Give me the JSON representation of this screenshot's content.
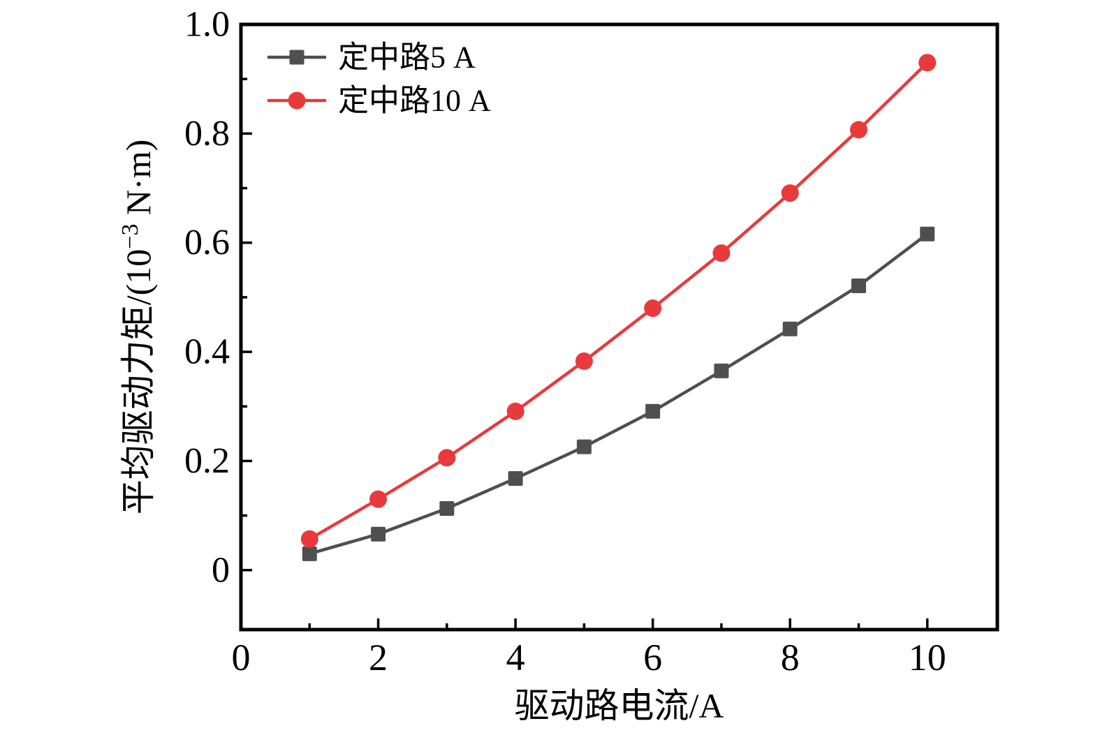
{
  "chart_data": {
    "type": "line",
    "title": "",
    "xlabel": "驱动路电流/A",
    "ylabel": "平均驱动力矩/(10⁻³ N·m)",
    "ylabel_parts": {
      "prefix": "平均驱动力矩/(10",
      "exponent": "−3",
      "suffix": " N·m)"
    },
    "x": [
      1,
      2,
      3,
      4,
      5,
      6,
      7,
      8,
      9,
      10
    ],
    "series": [
      {
        "name": "定中路5 A",
        "marker": "square",
        "color": "#4f4f4f",
        "values": [
          0.03,
          0.066,
          0.113,
          0.168,
          0.226,
          0.291,
          0.365,
          0.442,
          0.521,
          0.616
        ]
      },
      {
        "name": "定中路10 A",
        "marker": "circle",
        "color": "#e83a3c",
        "values": [
          0.057,
          0.13,
          0.206,
          0.291,
          0.383,
          0.48,
          0.581,
          0.691,
          0.807,
          0.93
        ]
      }
    ],
    "xlim": [
      0,
      11.02
    ],
    "ylim": [
      -0.109,
      1.0
    ],
    "x_major_ticks": [
      0,
      2,
      4,
      6,
      8,
      10
    ],
    "x_major_tick_labels": [
      "0",
      "2",
      "4",
      "6",
      "8",
      "10"
    ],
    "x_minor_ticks": [
      1,
      3,
      5,
      7,
      9
    ],
    "y_major_ticks": [
      0,
      0.2,
      0.4,
      0.6,
      0.8,
      1.0
    ],
    "y_major_tick_labels": [
      "0",
      "0.2",
      "0.4",
      "0.6",
      "0.8",
      "1.0"
    ],
    "y_minor_ticks": [
      0.1,
      0.3,
      0.5,
      0.7,
      0.9
    ],
    "legend_position": "top-left",
    "grid": false,
    "frame_color": "#000000",
    "background": "#ffffff",
    "text_color": "#000000"
  }
}
